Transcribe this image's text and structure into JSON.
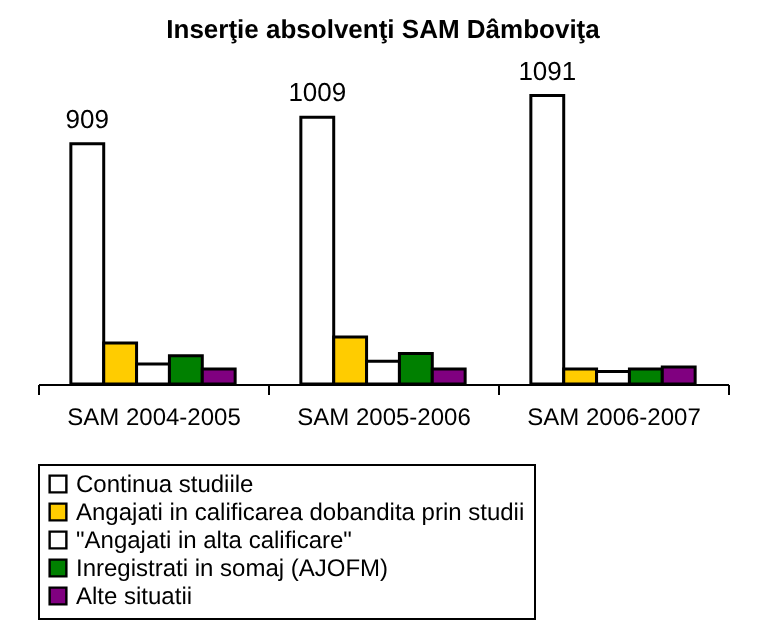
{
  "chart_data": {
    "type": "bar",
    "title": "Inserţie absolvenţi SAM Dâmboviţa",
    "categories": [
      "SAM 2004-2005",
      "SAM 2005-2006",
      "SAM 2006-2007"
    ],
    "series": [
      {
        "name": "Continua studiile",
        "color": "#ffffff",
        "values": [
          909,
          1009,
          1091
        ],
        "value_labels": [
          "909",
          "1009",
          "1091"
        ]
      },
      {
        "name": "Angajati in calificarea dobandita prin studii",
        "color": "#ffcc00",
        "values": [
          155,
          178,
          57
        ]
      },
      {
        "name": "\"Angajati in alta calificare\"",
        "color": "#ffffff",
        "values": [
          76,
          86,
          47
        ]
      },
      {
        "name": "Inregistrati in somaj (AJOFM)",
        "color": "#008000",
        "values": [
          107,
          115,
          57
        ]
      },
      {
        "name": "Alte situatii",
        "color": "#800080",
        "values": [
          57,
          57,
          64
        ]
      }
    ],
    "legend": "bottom",
    "grid": false,
    "tick_labels": "x"
  }
}
